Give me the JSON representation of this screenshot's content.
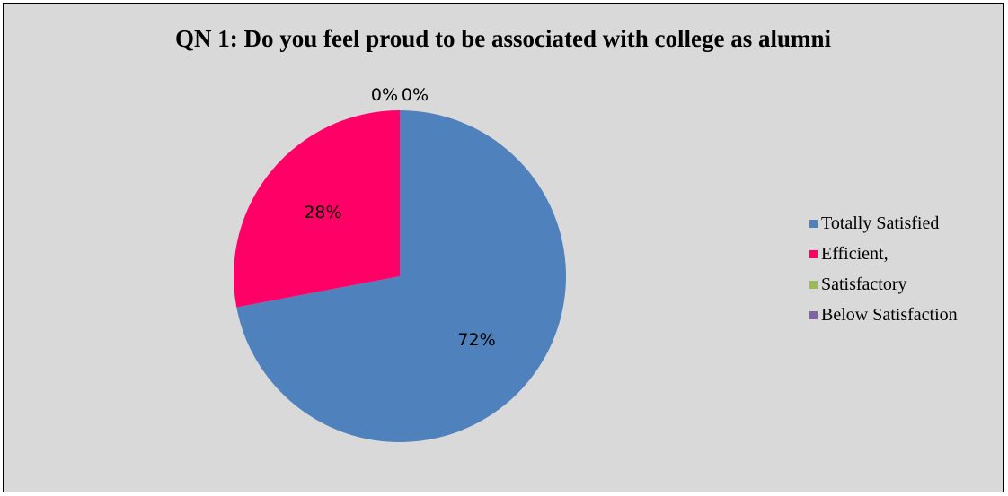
{
  "chart_data": {
    "type": "pie",
    "title": "QN 1: Do you feel proud to be associated with college as alumni",
    "legend_position": "right",
    "slices": [
      {
        "label": "Totally Satisfied",
        "value": 72,
        "display": "72%",
        "color": "#4f81bd"
      },
      {
        "label": "Efficient,",
        "value": 28,
        "display": "28%",
        "color": "#ff0066"
      },
      {
        "label": "Satisfactory",
        "value": 0,
        "display": "0%",
        "color": "#9bbb59"
      },
      {
        "label": "Below Satisfaction",
        "value": 0,
        "display": "0%",
        "color": "#8064a2"
      }
    ]
  }
}
